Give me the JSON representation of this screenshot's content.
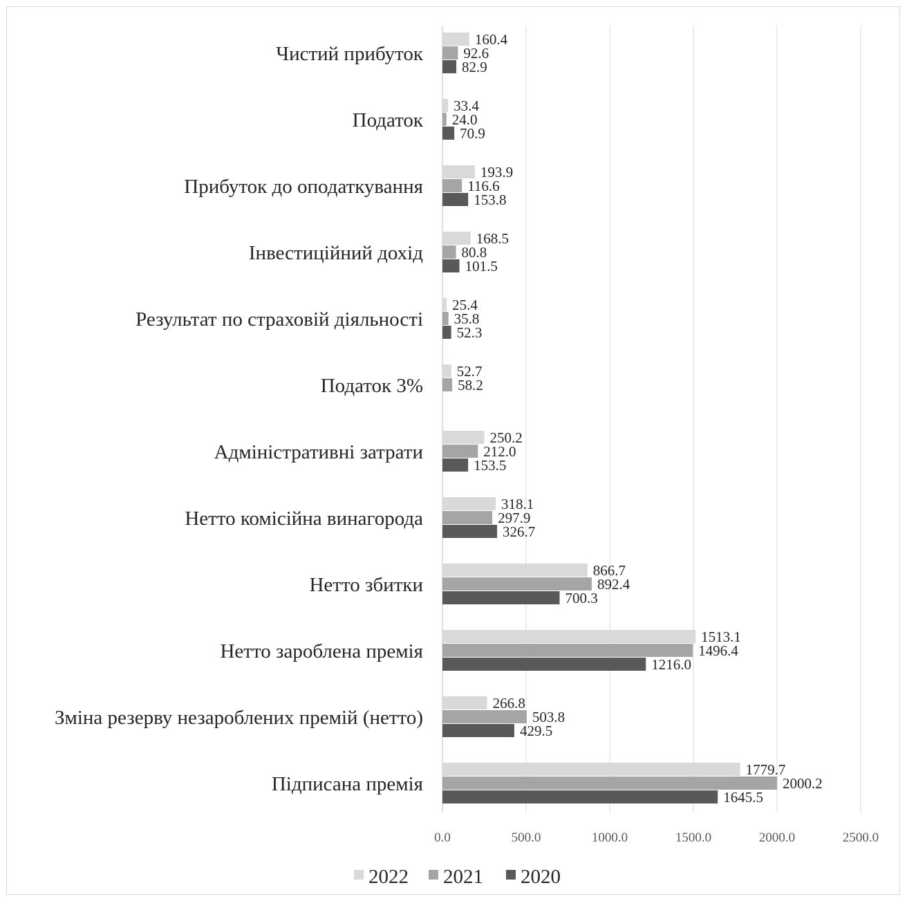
{
  "colors": {
    "2022": "#d9d9d9",
    "2021": "#a5a5a5",
    "2020": "#595959",
    "grid": "#d9d9d9",
    "axis": "#bfbfbf"
  },
  "chart_data": {
    "type": "bar",
    "orientation": "horizontal",
    "title": "",
    "xlabel": "",
    "ylabel": "",
    "xlim": [
      0,
      2500
    ],
    "x_ticks": [
      "0.0",
      "500.0",
      "1000.0",
      "1500.0",
      "2000.0",
      "2500.0"
    ],
    "grid": "vertical",
    "legend_position": "bottom",
    "categories": [
      "Чистий прибуток",
      "Податок",
      "Прибуток до оподаткування",
      "Інвестиційний дохід",
      "Результат по страховій діяльності",
      "Податок 3%",
      "Адміністративні затрати",
      "Нетто комісійна винагорода",
      "Нетто збитки",
      "Нетто зароблена премія",
      "Зміна резерву незароблених премій (нетто)",
      "Підписана премія"
    ],
    "series": [
      {
        "name": "2022",
        "values": [
          160.4,
          33.4,
          193.9,
          168.5,
          25.4,
          52.7,
          250.2,
          318.1,
          866.7,
          1513.1,
          266.8,
          1779.7
        ],
        "labels": [
          "160.4",
          "33.4",
          "193.9",
          "168.5",
          "25.4",
          "52.7",
          "250.2",
          "318.1",
          "866.7",
          "1513.1",
          "266.8",
          "1779.7"
        ]
      },
      {
        "name": "2021",
        "values": [
          92.6,
          24.0,
          116.6,
          80.8,
          35.8,
          58.2,
          212.0,
          297.9,
          892.4,
          1496.4,
          503.8,
          2000.2
        ],
        "labels": [
          "92.6",
          "24.0",
          "116.6",
          "80.8",
          "35.8",
          "58.2",
          "212.0",
          "297.9",
          "892.4",
          "1496.4",
          "503.8",
          "2000.2"
        ]
      },
      {
        "name": "2020",
        "values": [
          82.9,
          70.9,
          153.8,
          101.5,
          52.3,
          null,
          153.5,
          326.7,
          700.3,
          1216.0,
          429.5,
          1645.5
        ],
        "labels": [
          "82.9",
          "70.9",
          "153.8",
          "101.5",
          "52.3",
          "",
          "153.5",
          "326.7",
          "700.3",
          "1216.0",
          "429.5",
          "1645.5"
        ]
      }
    ]
  }
}
